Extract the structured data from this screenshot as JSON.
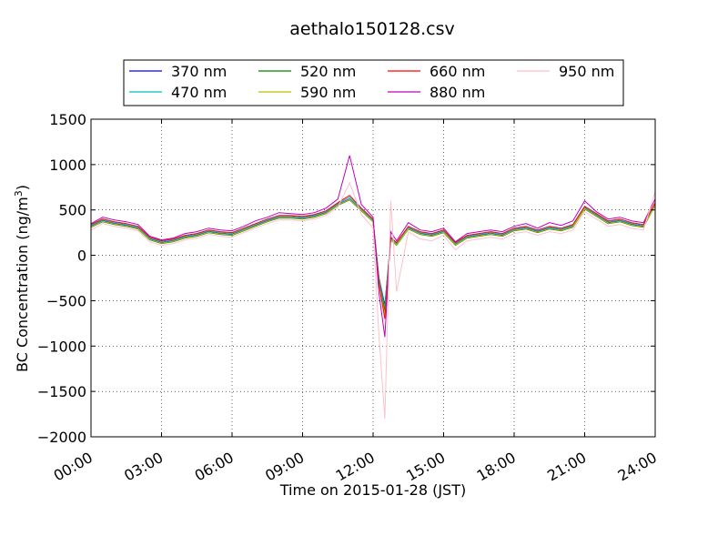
{
  "chart_data": {
    "type": "line",
    "title": "aethalo150128.csv",
    "xlabel": "Time on 2015-01-28 (JST)",
    "ylabel_main": "BC Concentration (ng/m",
    "ylabel_sup": "3",
    "ylabel_end": ")",
    "x_unit": "hours since 00:00",
    "xlim": [
      0,
      24
    ],
    "ylim": [
      -2000,
      1500
    ],
    "x_ticks": [
      {
        "value": 0,
        "label": "00:00"
      },
      {
        "value": 3,
        "label": "03:00"
      },
      {
        "value": 6,
        "label": "06:00"
      },
      {
        "value": 9,
        "label": "09:00"
      },
      {
        "value": 12,
        "label": "12:00"
      },
      {
        "value": 15,
        "label": "15:00"
      },
      {
        "value": 18,
        "label": "18:00"
      },
      {
        "value": 21,
        "label": "21:00"
      },
      {
        "value": 24,
        "label": "24:00"
      }
    ],
    "y_ticks": [
      {
        "value": 1500,
        "label": "1500"
      },
      {
        "value": 1000,
        "label": "1000"
      },
      {
        "value": 500,
        "label": "500"
      },
      {
        "value": 0,
        "label": "0"
      },
      {
        "value": -500,
        "label": "−500"
      },
      {
        "value": -1000,
        "label": "−1000"
      },
      {
        "value": -1500,
        "label": "−1500"
      },
      {
        "value": -2000,
        "label": "−2000"
      }
    ],
    "grid": true,
    "legend_position": "top-center, above plot",
    "x": [
      0,
      0.5,
      1,
      1.5,
      2,
      2.5,
      3,
      3.5,
      4,
      4.5,
      5,
      5.5,
      6,
      6.5,
      7,
      7.5,
      8,
      8.5,
      9,
      9.5,
      10,
      10.5,
      11,
      11.5,
      12,
      12.25,
      12.5,
      12.75,
      13,
      13.5,
      14,
      14.5,
      15,
      15.5,
      16,
      16.5,
      17,
      17.5,
      18,
      18.5,
      19,
      19.5,
      20,
      20.5,
      21,
      21.5,
      22,
      22.5,
      23,
      23.5,
      24
    ],
    "series": [
      {
        "name": "370 nm",
        "color": "#0000ff",
        "values": [
          320,
          380,
          350,
          330,
          300,
          180,
          140,
          160,
          200,
          220,
          260,
          240,
          230,
          280,
          330,
          380,
          420,
          420,
          410,
          430,
          470,
          560,
          620,
          500,
          380,
          -250,
          -550,
          180,
          120,
          300,
          240,
          220,
          260,
          120,
          200,
          220,
          240,
          220,
          280,
          300,
          260,
          300,
          280,
          320,
          520,
          440,
          360,
          380,
          340,
          320,
          560
        ]
      },
      {
        "name": "470 nm",
        "color": "#00bfbf",
        "values": [
          330,
          390,
          360,
          340,
          310,
          190,
          150,
          170,
          210,
          230,
          270,
          250,
          240,
          290,
          340,
          390,
          430,
          430,
          420,
          440,
          480,
          570,
          640,
          510,
          390,
          -260,
          -580,
          190,
          130,
          310,
          250,
          230,
          270,
          130,
          210,
          230,
          250,
          230,
          290,
          310,
          270,
          310,
          290,
          330,
          530,
          450,
          370,
          390,
          350,
          330,
          570
        ]
      },
      {
        "name": "520 nm",
        "color": "#008000",
        "values": [
          310,
          370,
          340,
          320,
          290,
          170,
          130,
          150,
          190,
          210,
          250,
          230,
          220,
          270,
          320,
          370,
          410,
          410,
          400,
          420,
          460,
          550,
          610,
          490,
          370,
          -280,
          -620,
          170,
          110,
          290,
          230,
          210,
          250,
          110,
          190,
          210,
          230,
          210,
          270,
          290,
          250,
          290,
          270,
          310,
          510,
          430,
          350,
          370,
          330,
          310,
          550
        ]
      },
      {
        "name": "590 nm",
        "color": "#bfbf00",
        "values": [
          315,
          375,
          345,
          325,
          295,
          175,
          135,
          155,
          195,
          215,
          255,
          235,
          225,
          275,
          325,
          375,
          415,
          415,
          405,
          425,
          465,
          555,
          615,
          495,
          375,
          -300,
          -660,
          175,
          115,
          295,
          235,
          215,
          255,
          115,
          195,
          215,
          235,
          215,
          275,
          295,
          255,
          295,
          275,
          315,
          515,
          435,
          355,
          375,
          335,
          315,
          555
        ]
      },
      {
        "name": "660 nm",
        "color": "#ff0000",
        "values": [
          340,
          400,
          370,
          350,
          320,
          200,
          160,
          180,
          220,
          240,
          280,
          260,
          250,
          300,
          350,
          400,
          440,
          440,
          430,
          450,
          490,
          580,
          660,
          520,
          400,
          -320,
          -700,
          200,
          140,
          320,
          260,
          240,
          280,
          140,
          220,
          240,
          260,
          240,
          300,
          320,
          280,
          320,
          300,
          340,
          540,
          460,
          380,
          400,
          360,
          340,
          580
        ]
      },
      {
        "name": "880 nm",
        "color": "#bf00bf",
        "values": [
          350,
          420,
          390,
          370,
          340,
          210,
          170,
          190,
          240,
          260,
          300,
          280,
          270,
          320,
          380,
          420,
          470,
          460,
          450,
          470,
          520,
          620,
          1100,
          560,
          420,
          -420,
          -900,
          260,
          160,
          360,
          280,
          260,
          300,
          150,
          240,
          260,
          280,
          260,
          320,
          350,
          300,
          360,
          330,
          380,
          600,
          480,
          400,
          420,
          380,
          360,
          620
        ]
      },
      {
        "name": "950 nm",
        "color": "#ffc0cb",
        "values": [
          280,
          350,
          320,
          300,
          270,
          150,
          110,
          130,
          170,
          190,
          230,
          210,
          200,
          250,
          300,
          350,
          390,
          390,
          380,
          400,
          440,
          530,
          800,
          450,
          300,
          -900,
          -1800,
          600,
          -400,
          260,
          180,
          160,
          220,
          60,
          160,
          180,
          200,
          180,
          240,
          260,
          220,
          260,
          240,
          280,
          480,
          400,
          320,
          340,
          300,
          280,
          700
        ]
      }
    ]
  }
}
